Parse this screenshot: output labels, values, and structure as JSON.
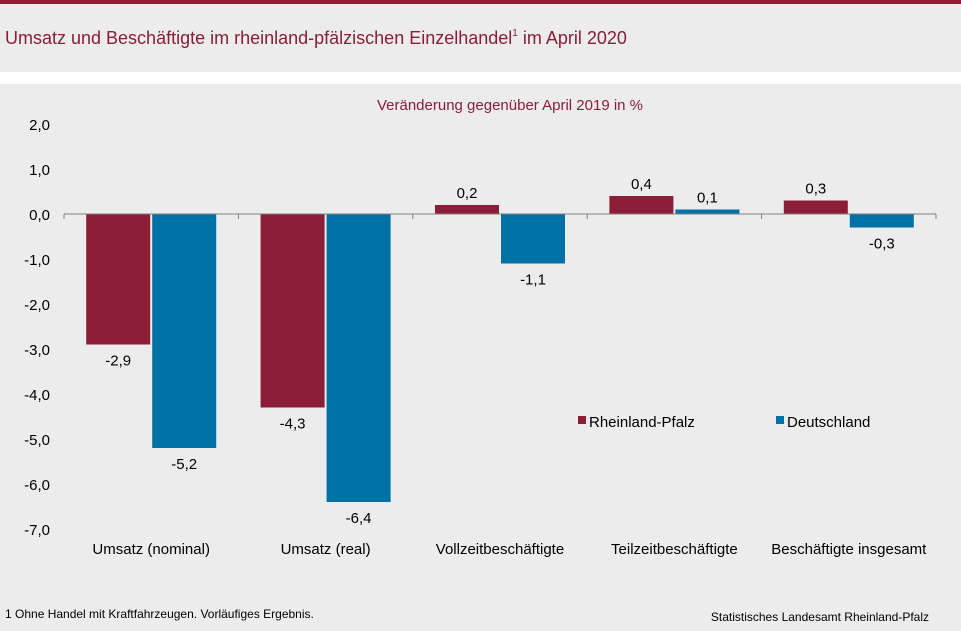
{
  "header": {
    "title_main": "Umsatz und Beschäftigte im rheinland-pfälzischen Einzelhandel",
    "title_sup": "1",
    "title_end": " im April 2020"
  },
  "footer": {
    "footnote": "1 Ohne Handel mit Kraftfahrzeugen.  Vorläufiges Ergebnis.",
    "source": "Statistisches Landesamt Rheinland-Pfalz"
  },
  "colors": {
    "accent": "#8b1d36",
    "rlp": "#8b1d36",
    "de": "#0071a4"
  },
  "chart_data": {
    "type": "bar",
    "title": "",
    "subtitle": "Veränderung  gegenüber  April 2019 in %",
    "xlabel": "",
    "ylabel": "",
    "ylim": [
      -7,
      2
    ],
    "yticks": [
      2,
      1,
      0,
      -1,
      -2,
      -3,
      -4,
      -5,
      -6,
      -7
    ],
    "ytick_labels": [
      "2,0",
      "1,0",
      "0,0",
      "-1,0",
      "-2,0",
      "-3,0",
      "-4,0",
      "-5,0",
      "-6,0",
      "-7,0"
    ],
    "categories": [
      "Umsatz (nominal)",
      "Umsatz (real)",
      "Vollzeitbeschäftigte",
      "Teilzeitbeschäftigte",
      "Beschäftigte insgesamt"
    ],
    "series": [
      {
        "name": "Rheinland-Pfalz",
        "color": "#8b1d36",
        "values": [
          -2.9,
          -4.3,
          0.2,
          0.4,
          0.3
        ],
        "labels": [
          "-2,9",
          "-4,3",
          "0,2",
          "0,4",
          "0,3"
        ]
      },
      {
        "name": "Deutschland",
        "color": "#0071a4",
        "values": [
          -5.2,
          -6.4,
          -1.1,
          0.1,
          -0.3
        ],
        "labels": [
          "-5,2",
          "-6,4",
          "-1,1",
          "0,1",
          "-0,3"
        ]
      }
    ],
    "legend_position": "right, inside plot",
    "grid": false
  }
}
